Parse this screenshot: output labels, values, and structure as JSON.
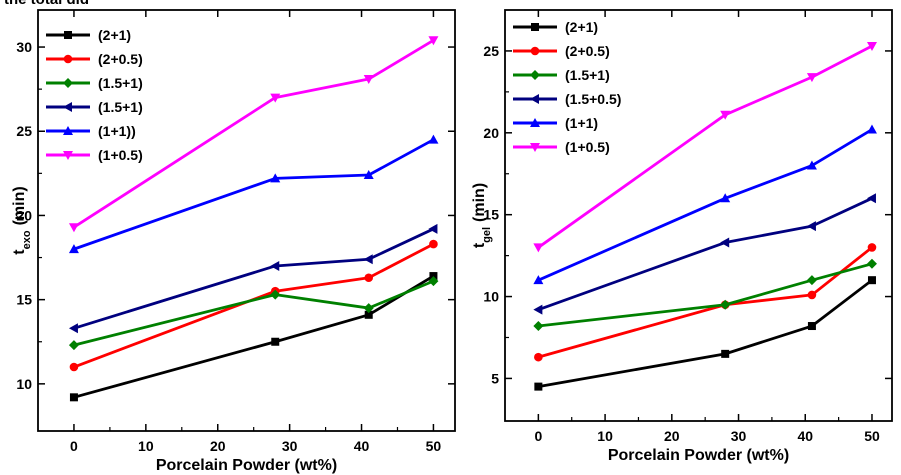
{
  "header_text": "the total did",
  "chart_data": [
    {
      "type": "line",
      "xlabel": "Porcelain Powder (wt%)",
      "ylabel_main": "t",
      "ylabel_sub": "exo",
      "ylabel_unit": "(min)",
      "xlim": [
        -5,
        53
      ],
      "ylim": [
        7.2,
        32.2
      ],
      "xticks": [
        0,
        10,
        20,
        30,
        40,
        50
      ],
      "yticks": [
        10,
        15,
        20,
        25,
        30
      ],
      "x": [
        0,
        28,
        41,
        50
      ],
      "legend": "top-left",
      "series": [
        {
          "name": "(2+1)",
          "color": "#000000",
          "marker": "square",
          "values": [
            9.2,
            12.5,
            14.1,
            16.4
          ]
        },
        {
          "name": "(2+0.5)",
          "color": "#ff0000",
          "marker": "circle",
          "values": [
            11.0,
            15.5,
            16.3,
            18.3
          ]
        },
        {
          "name": "(1.5+1)",
          "color": "#008000",
          "marker": "diamond",
          "values": [
            12.3,
            15.3,
            14.5,
            16.1
          ]
        },
        {
          "name": "(1.5+1)",
          "color": "#00007f",
          "marker": "left-triangle",
          "values": [
            13.3,
            17.0,
            17.4,
            19.2
          ]
        },
        {
          "name": "(1+1))",
          "color": "#0000ff",
          "marker": "up-triangle",
          "values": [
            18.0,
            22.2,
            22.4,
            24.5
          ]
        },
        {
          "name": "(1+0.5)",
          "color": "#ff00ff",
          "marker": "down-triangle",
          "values": [
            19.3,
            27.0,
            28.1,
            30.4
          ]
        }
      ]
    },
    {
      "type": "line",
      "xlabel": "Porcelain Powder (wt%)",
      "ylabel_main": "t",
      "ylabel_sub": "gel",
      "ylabel_unit": "(min)",
      "xlim": [
        -5,
        53
      ],
      "ylim": [
        2.4,
        27.5
      ],
      "xticks": [
        0,
        10,
        20,
        30,
        40,
        50
      ],
      "yticks": [
        5,
        10,
        15,
        20,
        25
      ],
      "x": [
        0,
        28,
        41,
        50
      ],
      "legend": "top-left",
      "series": [
        {
          "name": "(2+1)",
          "color": "#000000",
          "marker": "square",
          "values": [
            4.5,
            6.5,
            8.2,
            11.0
          ]
        },
        {
          "name": "(2+0.5)",
          "color": "#ff0000",
          "marker": "circle",
          "values": [
            6.3,
            9.5,
            10.1,
            13.0
          ]
        },
        {
          "name": "(1.5+1)",
          "color": "#008000",
          "marker": "diamond",
          "values": [
            8.2,
            9.5,
            11.0,
            12.0
          ]
        },
        {
          "name": "(1.5+0.5)",
          "color": "#00007f",
          "marker": "left-triangle",
          "values": [
            9.2,
            13.3,
            14.3,
            16.0
          ]
        },
        {
          "name": "(1+1)",
          "color": "#0000ff",
          "marker": "up-triangle",
          "values": [
            11.0,
            16.0,
            18.0,
            20.2
          ]
        },
        {
          "name": "(1+0.5)",
          "color": "#ff00ff",
          "marker": "down-triangle",
          "values": [
            13.0,
            21.1,
            23.4,
            25.3
          ]
        }
      ]
    }
  ]
}
